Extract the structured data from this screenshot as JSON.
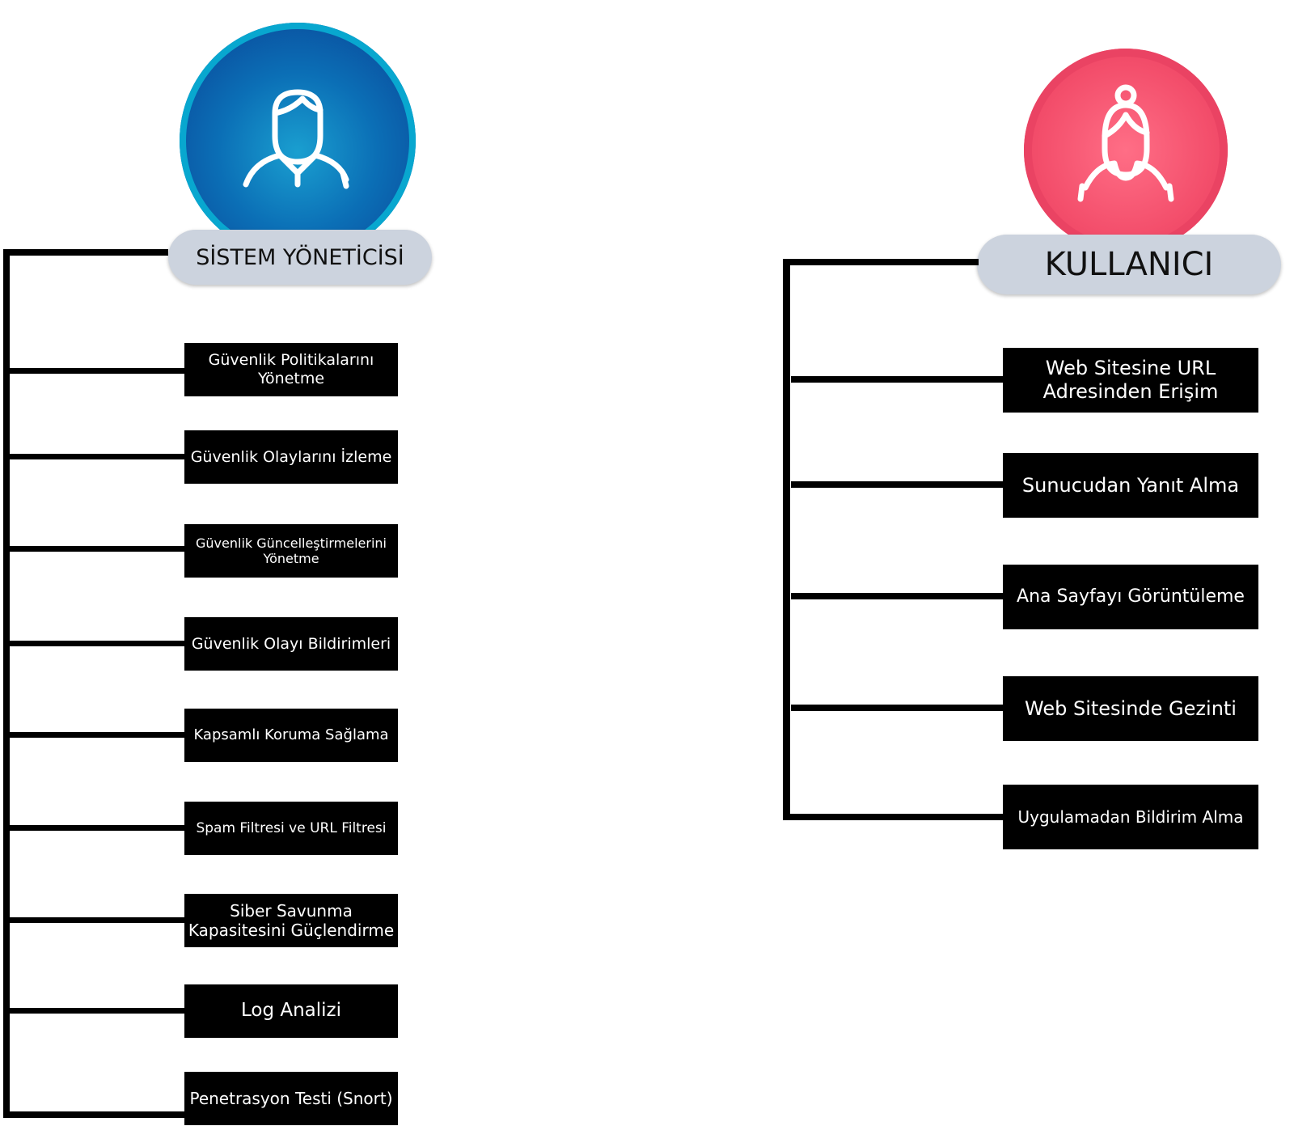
{
  "admin": {
    "title": "SİSTEM YÖNETİCİSİ",
    "icon": "male-user-icon",
    "color": "#0a5aa6",
    "items": [
      "Güvenlik Politikalarını Yönetme",
      "Güvenlik Olaylarını İzleme",
      "Güvenlik Güncelleştirmelerini Yönetme",
      "Güvenlik Olayı Bildirimleri",
      "Kapsamlı Koruma Sağlama",
      "Spam Filtresi ve URL Filtresi",
      "Siber Savunma Kapasitesini Güçlendirme",
      "Log Analizi",
      "Penetrasyon Testi (Snort)"
    ]
  },
  "user": {
    "title": "KULLANICI",
    "icon": "female-user-icon",
    "color": "#f2546e",
    "items": [
      "Web Sitesine URL Adresinden Erişim",
      "Sunucudan Yanıt Alma",
      "Ana Sayfayı Görüntüleme",
      "Web Sitesinde Gezinti",
      "Uygulamadan Bildirim Alma"
    ]
  }
}
